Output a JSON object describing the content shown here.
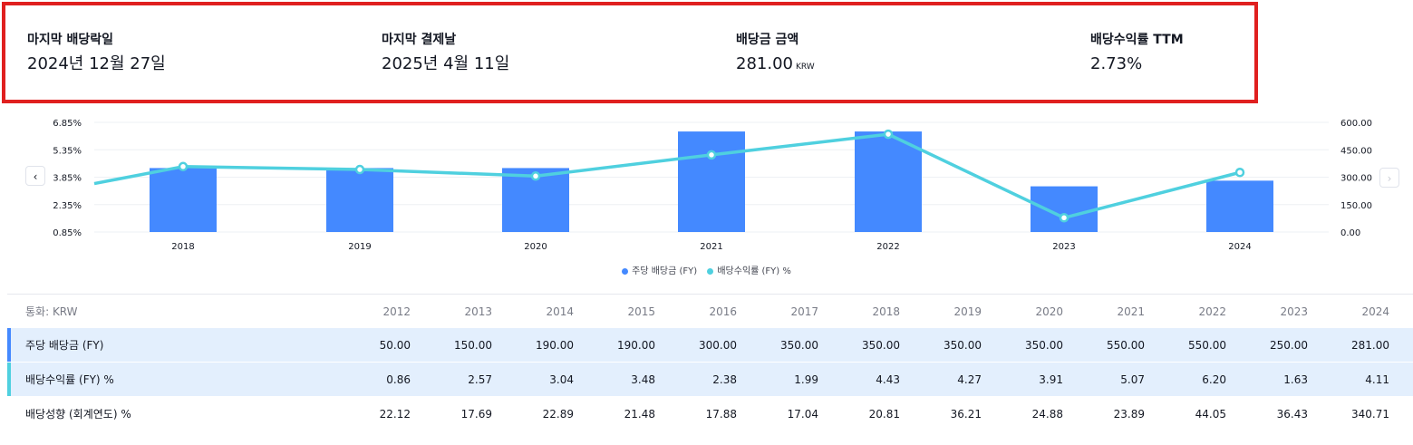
{
  "summary": [
    {
      "label": "마지막 배당락일",
      "value": "2024년 12월 27일",
      "unit": ""
    },
    {
      "label": "마지막 결제날",
      "value": "2025년 4월 11일",
      "unit": ""
    },
    {
      "label": "배당금 금액",
      "value": "281.00",
      "unit": "KRW"
    },
    {
      "label": "배당수익률 TTM",
      "value": "2.73%",
      "unit": ""
    }
  ],
  "chart_data": {
    "type": "bar",
    "categories": [
      "2018",
      "2019",
      "2020",
      "2021",
      "2022",
      "2023",
      "2024"
    ],
    "series": [
      {
        "name": "주당 배당금 (FY)",
        "type": "bar",
        "axis": "right",
        "color": "#4489ff",
        "values": [
          350,
          350,
          350,
          550,
          550,
          250,
          281
        ]
      },
      {
        "name": "배당수익률 (FY) %",
        "type": "line",
        "axis": "left",
        "color": "#4fd0df",
        "values": [
          4.43,
          4.27,
          3.91,
          5.07,
          6.2,
          1.63,
          4.11
        ]
      }
    ],
    "left_ticks": [
      "6.85%",
      "5.35%",
      "3.85%",
      "2.35%",
      "0.85%"
    ],
    "right_ticks": [
      "600.00",
      "450.00",
      "300.00",
      "150.00",
      "0.00"
    ],
    "left_range": [
      0.85,
      6.85
    ],
    "right_range": [
      0,
      600
    ],
    "line_start_value": 3.5,
    "grid": true,
    "legend": "bottom-center"
  },
  "nav": {
    "prev": "‹",
    "next": "›"
  },
  "table": {
    "currency_label": "통화: KRW",
    "years": [
      "2012",
      "2013",
      "2014",
      "2015",
      "2016",
      "2017",
      "2018",
      "2019",
      "2020",
      "2021",
      "2022",
      "2023",
      "2024"
    ],
    "rows": [
      {
        "name": "주당 배당금 (FY)",
        "color": "#4489ff",
        "values": [
          "50.00",
          "150.00",
          "190.00",
          "190.00",
          "300.00",
          "350.00",
          "350.00",
          "350.00",
          "350.00",
          "550.00",
          "550.00",
          "250.00",
          "281.00"
        ]
      },
      {
        "name": "배당수익률 (FY) %",
        "color": "#4fd0df",
        "values": [
          "0.86",
          "2.57",
          "3.04",
          "3.48",
          "2.38",
          "1.99",
          "4.43",
          "4.27",
          "3.91",
          "5.07",
          "6.20",
          "1.63",
          "4.11"
        ]
      },
      {
        "name": "배당성향 (회계연도) %",
        "color": "",
        "values": [
          "22.12",
          "17.69",
          "22.89",
          "21.48",
          "17.88",
          "17.04",
          "20.81",
          "36.21",
          "24.88",
          "23.89",
          "44.05",
          "36.43",
          "340.71"
        ]
      }
    ]
  }
}
